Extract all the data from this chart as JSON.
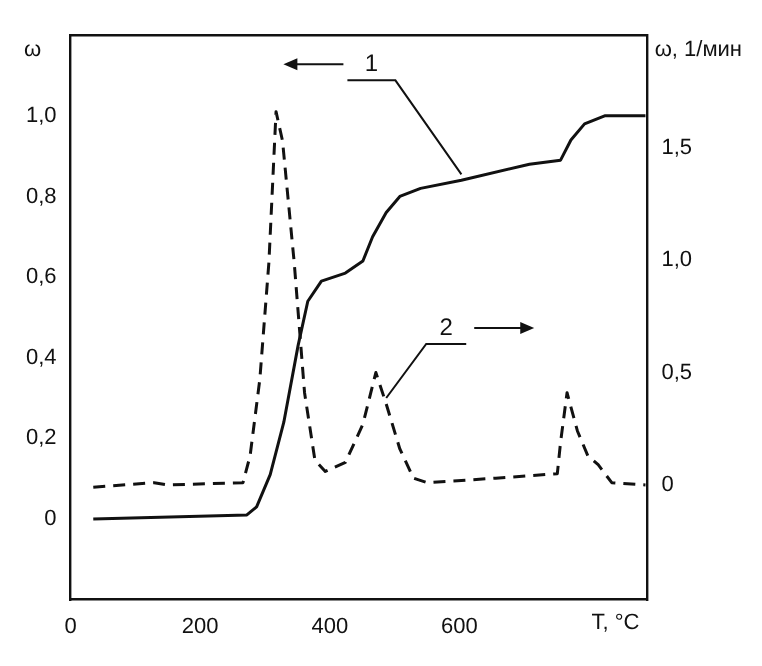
{
  "chart_data": {
    "type": "line",
    "xlabel": "T, °C",
    "ylabel": "ω",
    "y2label": "ω, 1/мин",
    "xlim": [
      0,
      890
    ],
    "xticks": [
      0,
      200,
      400,
      600
    ],
    "ylim": [
      -0.2,
      1.2
    ],
    "yticks": [
      0,
      {
        "value": 0.2,
        "label": "0,2"
      },
      {
        "value": 0.4,
        "label": "0,4"
      },
      {
        "value": 0.6,
        "label": "0,6"
      },
      {
        "value": 0.8,
        "label": "0,8"
      },
      {
        "value": 1.0,
        "label": "1,0"
      }
    ],
    "y2lim": [
      -0.51,
      2.0
    ],
    "y2ticks": [
      0,
      {
        "value": 0.5,
        "label": "0,5"
      },
      {
        "value": 1.0,
        "label": "1,0"
      },
      {
        "value": 1.5,
        "label": "1,5"
      }
    ],
    "grid": false,
    "legend": false,
    "marker": "none",
    "series": [
      {
        "color": "#111111",
        "line_style": "solid",
        "axis": "y",
        "x": [
          35,
          272,
          287,
          308,
          329,
          351,
          366,
          387,
          424,
          451,
          466,
          487,
          508,
          540,
          603,
          708,
          756,
          772,
          793,
          824,
          887
        ],
        "values": [
          0,
          0.01,
          0.03,
          0.11,
          0.24,
          0.43,
          0.54,
          0.59,
          0.61,
          0.64,
          0.7,
          0.76,
          0.8,
          0.82,
          0.84,
          0.88,
          0.89,
          0.94,
          0.98,
          1.0,
          1.0
        ]
      },
      {
        "color": "#111111",
        "line_style": "dashed",
        "axis": "y2",
        "x": [
          35,
          129,
          150,
          266,
          277,
          292,
          306,
          317,
          327,
          345,
          361,
          377,
          393,
          424,
          451,
          471,
          487,
          508,
          529,
          550,
          656,
          751,
          756,
          766,
          782,
          798,
          814,
          835,
          887
        ],
        "values": [
          -0.01,
          0.01,
          0,
          0.01,
          0.13,
          0.47,
          0.99,
          1.66,
          1.53,
          0.99,
          0.41,
          0.11,
          0.06,
          0.1,
          0.27,
          0.5,
          0.36,
          0.16,
          0.03,
          0.01,
          0.03,
          0.05,
          0.19,
          0.41,
          0.24,
          0.13,
          0.09,
          0.01,
          0
        ]
      }
    ],
    "annotations": [
      {
        "text": "1",
        "x": 603,
        "y": 0.84
      },
      {
        "text": "2",
        "x": 487,
        "y": 0.36
      }
    ]
  }
}
